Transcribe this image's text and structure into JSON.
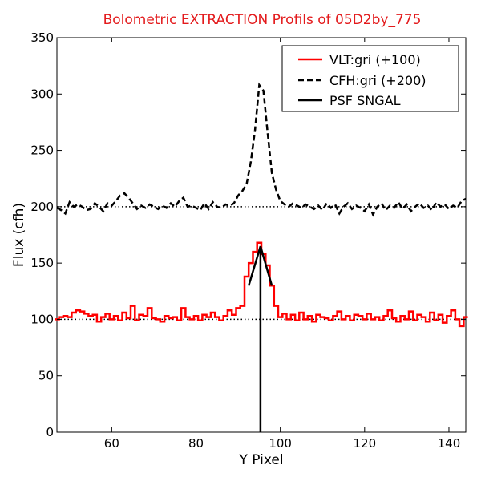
{
  "chart_data": {
    "type": "line",
    "title": "Bolometric EXTRACTION Profils of 05D2by_775",
    "title_color": "#e31a1c",
    "xlabel": "Y Pixel",
    "ylabel": "Flux (cfh)",
    "xlim": [
      47,
      144
    ],
    "ylim": [
      0,
      350
    ],
    "xticks": [
      60,
      80,
      100,
      120,
      140
    ],
    "yticks": [
      0,
      50,
      100,
      150,
      200,
      250,
      300,
      350
    ],
    "grid": false,
    "legend_position": "top-right",
    "reference_lines": [
      {
        "y": 100,
        "style": "dotted",
        "color": "#000000"
      },
      {
        "y": 200,
        "style": "dotted",
        "color": "#000000"
      }
    ],
    "series": [
      {
        "name": "VLT:gri (+100)",
        "color": "#ff0000",
        "style": "steps",
        "x": [
          47,
          48,
          49,
          50,
          51,
          52,
          53,
          54,
          55,
          56,
          57,
          58,
          59,
          60,
          61,
          62,
          63,
          64,
          65,
          66,
          67,
          68,
          69,
          70,
          71,
          72,
          73,
          74,
          75,
          76,
          77,
          78,
          79,
          80,
          81,
          82,
          83,
          84,
          85,
          86,
          87,
          88,
          89,
          90,
          91,
          92,
          93,
          94,
          95,
          96,
          97,
          98,
          99,
          100,
          101,
          102,
          103,
          104,
          105,
          106,
          107,
          108,
          109,
          110,
          111,
          112,
          113,
          114,
          115,
          116,
          117,
          118,
          119,
          120,
          121,
          122,
          123,
          124,
          125,
          126,
          127,
          128,
          129,
          130,
          131,
          132,
          133,
          134,
          135,
          136,
          137,
          138,
          139,
          140,
          141,
          142,
          143,
          144
        ],
        "y": [
          100,
          102,
          103,
          102,
          106,
          108,
          107,
          105,
          103,
          104,
          98,
          102,
          105,
          100,
          103,
          99,
          106,
          101,
          112,
          99,
          104,
          103,
          110,
          101,
          100,
          98,
          103,
          101,
          102,
          99,
          110,
          102,
          100,
          103,
          99,
          104,
          102,
          106,
          102,
          99,
          103,
          108,
          104,
          110,
          112,
          138,
          150,
          160,
          168,
          158,
          148,
          130,
          112,
          102,
          105,
          100,
          104,
          99,
          106,
          100,
          103,
          98,
          104,
          102,
          101,
          99,
          103,
          107,
          100,
          103,
          99,
          104,
          103,
          100,
          105,
          100,
          102,
          99,
          103,
          108,
          101,
          98,
          103,
          100,
          107,
          99,
          104,
          102,
          98,
          106,
          99,
          104,
          97,
          103,
          108,
          100,
          94,
          102
        ]
      },
      {
        "name": "CFH:gri (+200)",
        "color": "#000000",
        "style": "dashed",
        "x": [
          47,
          48,
          49,
          50,
          51,
          52,
          53,
          54,
          55,
          56,
          57,
          58,
          59,
          60,
          61,
          62,
          63,
          64,
          65,
          66,
          67,
          68,
          69,
          70,
          71,
          72,
          73,
          74,
          75,
          76,
          77,
          78,
          79,
          80,
          81,
          82,
          83,
          84,
          85,
          86,
          87,
          88,
          89,
          90,
          91,
          92,
          93,
          94,
          95,
          96,
          97,
          98,
          99,
          100,
          101,
          102,
          103,
          104,
          105,
          106,
          107,
          108,
          109,
          110,
          111,
          112,
          113,
          114,
          115,
          116,
          117,
          118,
          119,
          120,
          121,
          122,
          123,
          124,
          125,
          126,
          127,
          128,
          129,
          130,
          131,
          132,
          133,
          134,
          135,
          136,
          137,
          138,
          139,
          140,
          141,
          142,
          143,
          144
        ],
        "y": [
          199,
          197,
          194,
          204,
          200,
          202,
          200,
          197,
          198,
          203,
          200,
          196,
          203,
          201,
          205,
          210,
          212,
          208,
          203,
          198,
          201,
          199,
          202,
          200,
          198,
          201,
          199,
          203,
          200,
          205,
          208,
          200,
          201,
          199,
          197,
          203,
          198,
          204,
          200,
          199,
          202,
          201,
          203,
          210,
          214,
          220,
          240,
          268,
          308,
          303,
          265,
          230,
          215,
          205,
          202,
          200,
          203,
          201,
          199,
          202,
          200,
          198,
          201,
          197,
          203,
          199,
          202,
          194,
          200,
          203,
          198,
          201,
          199,
          196,
          202,
          193,
          200,
          203,
          197,
          201,
          199,
          204,
          198,
          202,
          196,
          200,
          203,
          199,
          201,
          197,
          204,
          200,
          202,
          198,
          201,
          199,
          205,
          207
        ]
      },
      {
        "name": "PSF SNGAL",
        "color": "#000000",
        "style": "solid",
        "x": [
          92.5,
          95.3,
          95.3,
          95.3,
          98.0
        ],
        "y": [
          130,
          165,
          0,
          165,
          130
        ]
      }
    ]
  }
}
